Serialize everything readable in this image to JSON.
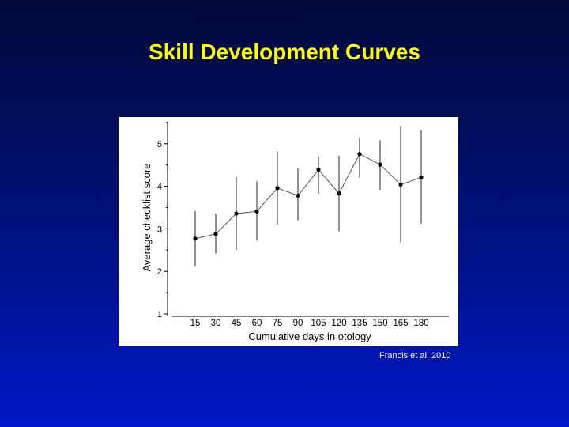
{
  "slide": {
    "title": "Skill Development Curves",
    "citation": "Francis et al, 2010"
  },
  "chart_data": {
    "type": "line",
    "title": "",
    "xlabel": "Cumulative days in otology",
    "ylabel": "Average checklist score",
    "categories": [
      "15",
      "30",
      "45",
      "60",
      "75",
      "90",
      "105",
      "120",
      "135",
      "150",
      "165",
      "180"
    ],
    "y_ticks": [
      "1",
      "2",
      "3",
      "4",
      "5"
    ],
    "ylim": [
      1,
      5.5
    ],
    "grid": false,
    "series": [
      {
        "values": [
          2.77,
          2.88,
          3.36,
          3.41,
          3.96,
          3.78,
          4.39,
          3.83,
          4.76,
          4.51,
          4.04,
          4.21
        ],
        "error_low": [
          2.12,
          2.42,
          2.5,
          2.72,
          3.1,
          3.2,
          3.82,
          2.94,
          4.2,
          3.92,
          2.68,
          3.12
        ],
        "error_high": [
          3.42,
          3.36,
          4.22,
          4.12,
          4.82,
          4.42,
          4.7,
          4.72,
          5.15,
          5.08,
          5.42,
          5.32
        ],
        "color": "#000000"
      }
    ]
  }
}
